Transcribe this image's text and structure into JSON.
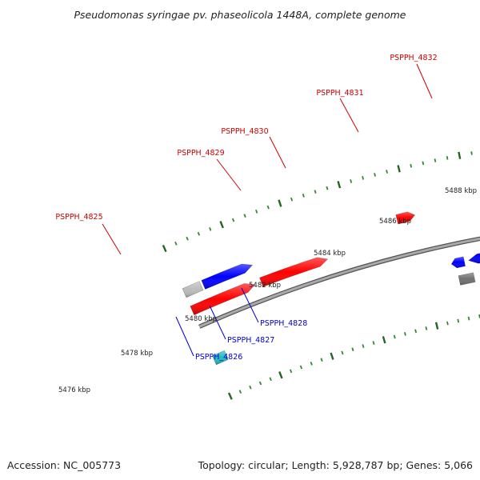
{
  "title": "Pseudomonas syringae pv. phaseolicola 1448A, complete genome",
  "footer": {
    "accession": "Accession: NC_005773",
    "summary": "Topology: circular; Length: 5,928,787 bp; Genes: 5,066"
  },
  "scale_labels": [
    "5476 kbp",
    "5478 kbp",
    "5480 kbp",
    "5482 kbp",
    "5484 kbp",
    "5486 kbp",
    "5488 kbp"
  ],
  "gene_labels": {
    "forward": [
      "PSPPH_4825",
      "PSPPH_4829",
      "PSPPH_4830",
      "PSPPH_4831",
      "PSPPH_4832"
    ],
    "reverse": [
      "PSPPH_4826",
      "PSPPH_4827",
      "PSPPH_4828"
    ]
  },
  "colors": {
    "backbone": "#999999",
    "forward_cds": "#ff0000",
    "reverse_cds": "#0000ff",
    "forward_label": "#cc0000",
    "reverse_label": "#0000cc",
    "tick_dark": "#226622",
    "tick_light": "#338833",
    "feature_purple": "#50508f",
    "feature_lightgreen": "#99ee33",
    "feature_olive": "#6b8e23",
    "feature_gray": "#707070",
    "feature_cyan": "#22bbbb",
    "feature_lightgray": "#bbbbbb"
  }
}
